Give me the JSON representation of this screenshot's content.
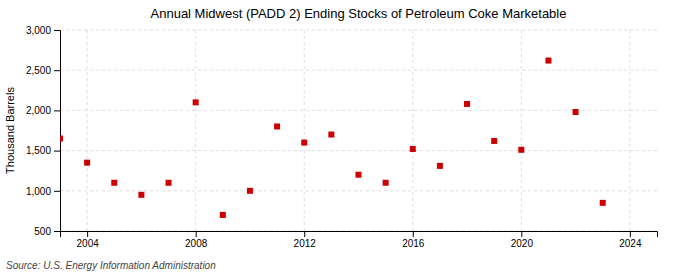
{
  "chart_data": {
    "type": "scatter",
    "title": "Annual Midwest (PADD 2) Ending Stocks of Petroleum Coke Marketable",
    "ylabel": "Thousand Barrels",
    "source": "Source: U.S. Energy Information Administration",
    "x": [
      2003,
      2004,
      2005,
      2006,
      2007,
      2008,
      2009,
      2010,
      2011,
      2012,
      2013,
      2014,
      2015,
      2016,
      2017,
      2018,
      2019,
      2020,
      2021,
      2022,
      2023
    ],
    "values": [
      1650,
      1350,
      1100,
      950,
      1100,
      2100,
      700,
      1000,
      1800,
      1600,
      1700,
      1200,
      1100,
      1520,
      1310,
      2080,
      1620,
      1510,
      2620,
      1980,
      850
    ],
    "color": "#cc0000",
    "marker": "square",
    "xlim": [
      2003.0,
      2025.0
    ],
    "ylim": [
      500,
      3000
    ],
    "xticks": [
      2004,
      2008,
      2012,
      2016,
      2020,
      2024
    ],
    "yticks": [
      500,
      {
        "value": 1000,
        "label": "1,000"
      },
      {
        "value": 1500,
        "label": "1,500"
      },
      {
        "value": 2000,
        "label": "2,000"
      },
      {
        "value": 2500,
        "label": "2,500"
      },
      {
        "value": 3000,
        "label": "3,000"
      }
    ],
    "grid": true
  }
}
